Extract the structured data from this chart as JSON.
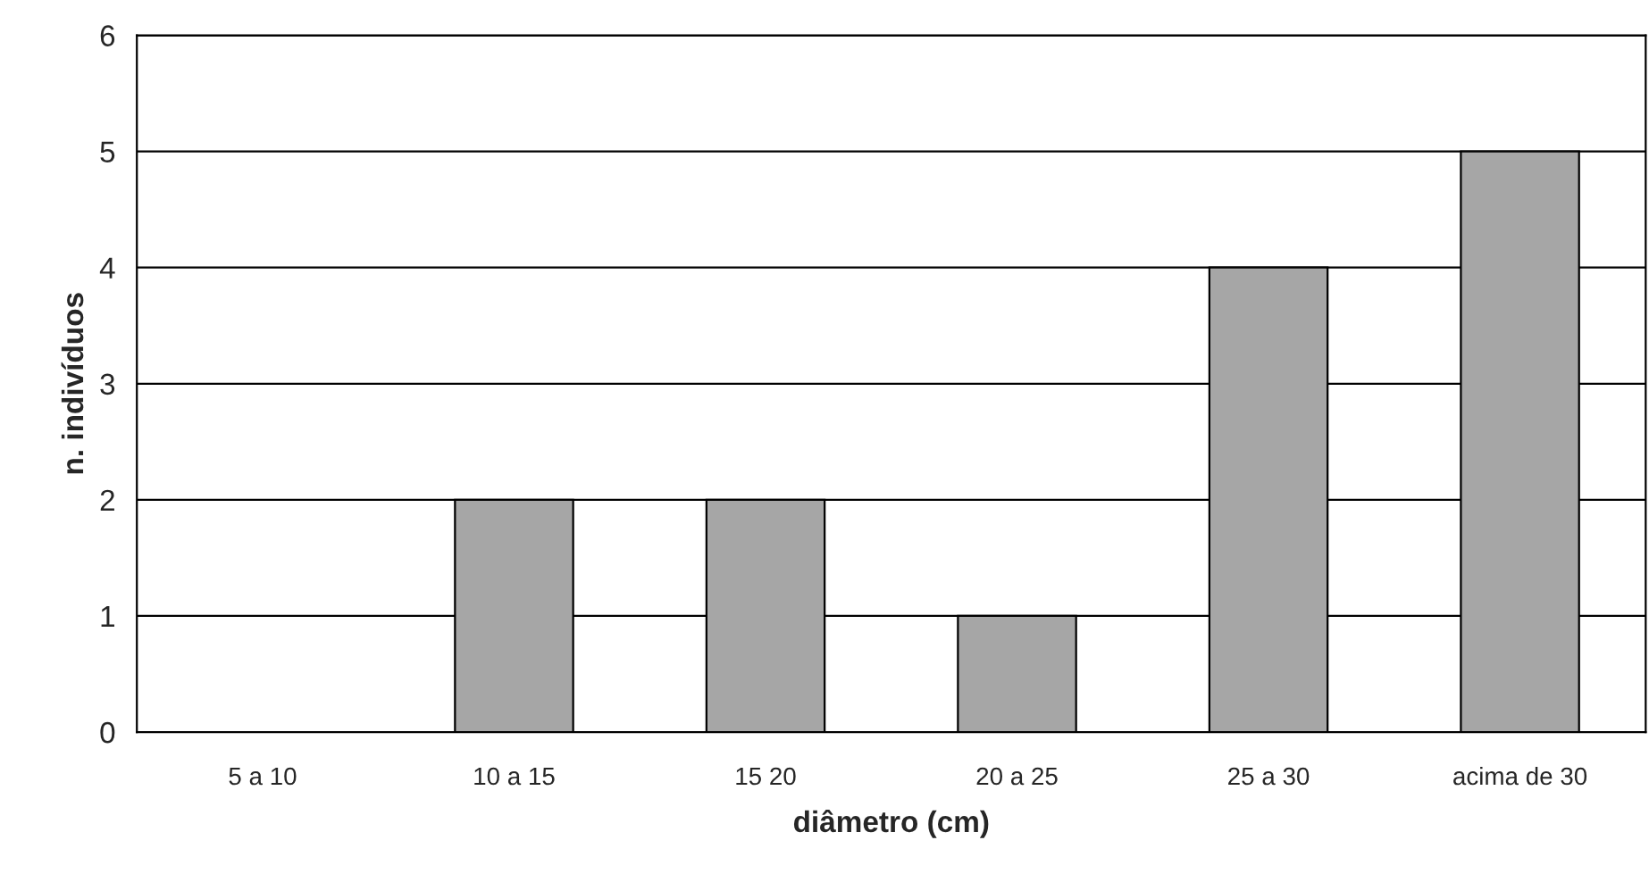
{
  "chart_data": {
    "type": "bar",
    "xlabel": "diâmetro (cm)",
    "ylabel": "n. indivíduos",
    "categories": [
      "5 a 10",
      "10 a 15",
      "15 20",
      "20 a 25",
      "25 a 30",
      "acima de 30"
    ],
    "values": [
      0,
      2,
      2,
      1,
      4,
      5
    ],
    "color": "#a6a6a6",
    "ylim": [
      0,
      6
    ],
    "yticks": [
      0,
      1,
      2,
      3,
      4,
      5,
      6
    ],
    "grid": "y",
    "legend": false
  }
}
